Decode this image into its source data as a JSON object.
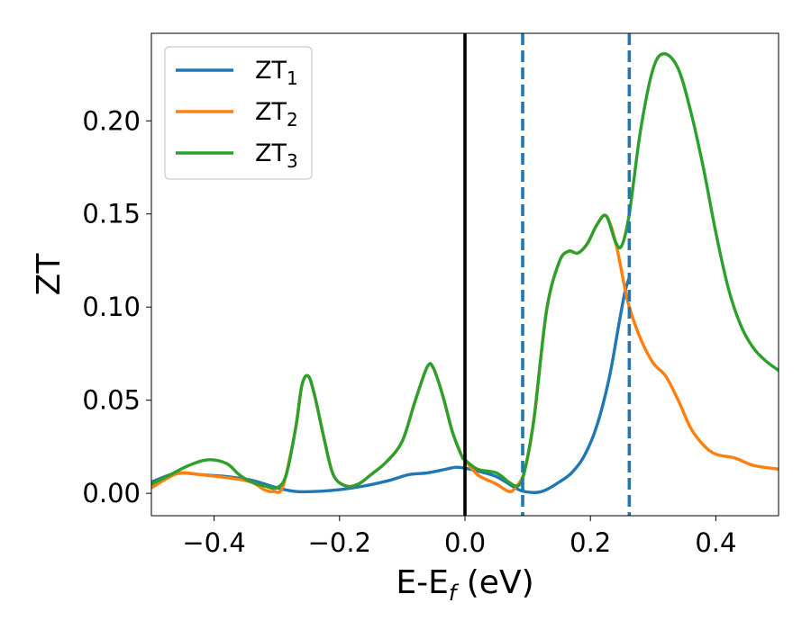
{
  "chart_data": {
    "type": "line",
    "xlabel": {
      "main": "E-E",
      "sub": "f",
      "suffix": " (eV)"
    },
    "ylabel": "ZT",
    "xlim": [
      -0.5,
      0.5
    ],
    "ylim": [
      -0.012,
      0.247
    ],
    "x_ticks": [
      -0.4,
      -0.2,
      0.0,
      0.2,
      0.4
    ],
    "x_tick_labels": [
      "−0.4",
      "−0.2",
      "0.0",
      "0.2",
      "0.4"
    ],
    "y_ticks": [
      0.0,
      0.05,
      0.1,
      0.15,
      0.2
    ],
    "y_tick_labels": [
      "0.00",
      "0.05",
      "0.10",
      "0.15",
      "0.20"
    ],
    "legend_position": "upper-left",
    "vertical_lines": [
      {
        "x": 0.0,
        "color": "#000000",
        "style": "solid"
      },
      {
        "x": 0.092,
        "color": "#1f77b4",
        "style": "dashed"
      },
      {
        "x": 0.262,
        "color": "#1f77b4",
        "style": "dashed"
      }
    ],
    "series": [
      {
        "name": "ZT",
        "sub": "1",
        "color": "#1f77b4",
        "points": [
          [
            -0.5,
            0.006
          ],
          [
            -0.47,
            0.01
          ],
          [
            -0.45,
            0.011
          ],
          [
            -0.42,
            0.01
          ],
          [
            -0.38,
            0.009
          ],
          [
            -0.34,
            0.007
          ],
          [
            -0.3,
            0.003
          ],
          [
            -0.27,
            0.001
          ],
          [
            -0.24,
            0.001
          ],
          [
            -0.2,
            0.002
          ],
          [
            -0.16,
            0.004
          ],
          [
            -0.12,
            0.007
          ],
          [
            -0.09,
            0.01
          ],
          [
            -0.06,
            0.011
          ],
          [
            -0.03,
            0.013
          ],
          [
            -0.015,
            0.014
          ],
          [
            0.0,
            0.0135
          ],
          [
            0.02,
            0.012
          ],
          [
            0.05,
            0.009
          ],
          [
            0.08,
            0.003
          ],
          [
            0.095,
            0.001
          ],
          [
            0.115,
            0.0005
          ],
          [
            0.13,
            0.002
          ],
          [
            0.15,
            0.006
          ],
          [
            0.17,
            0.011
          ],
          [
            0.19,
            0.02
          ],
          [
            0.21,
            0.036
          ],
          [
            0.23,
            0.062
          ],
          [
            0.245,
            0.09
          ],
          [
            0.255,
            0.108
          ],
          [
            0.262,
            0.116
          ]
        ]
      },
      {
        "name": "ZT",
        "sub": "2",
        "color": "#ff7f0e",
        "points": [
          [
            -0.5,
            0.003
          ],
          [
            -0.47,
            0.009
          ],
          [
            -0.45,
            0.011
          ],
          [
            -0.42,
            0.01
          ],
          [
            -0.37,
            0.008
          ],
          [
            -0.34,
            0.006
          ],
          [
            -0.32,
            0.002
          ],
          [
            -0.305,
            0.001
          ],
          [
            -0.29,
            0.004
          ],
          [
            -0.27,
            0.035
          ],
          [
            -0.26,
            0.058
          ],
          [
            -0.25,
            0.063
          ],
          [
            -0.24,
            0.053
          ],
          [
            -0.225,
            0.03
          ],
          [
            -0.21,
            0.01
          ],
          [
            -0.19,
            0.004
          ],
          [
            -0.17,
            0.005
          ],
          [
            -0.15,
            0.01
          ],
          [
            -0.125,
            0.017
          ],
          [
            -0.1,
            0.028
          ],
          [
            -0.08,
            0.049
          ],
          [
            -0.06,
            0.068
          ],
          [
            -0.05,
            0.067
          ],
          [
            -0.035,
            0.052
          ],
          [
            -0.02,
            0.033
          ],
          [
            -0.005,
            0.02
          ],
          [
            0.0,
            0.018
          ],
          [
            0.02,
            0.01
          ],
          [
            0.05,
            0.005
          ],
          [
            0.07,
            0.001
          ],
          [
            0.08,
            0.003
          ],
          [
            0.095,
            0.012
          ],
          [
            0.11,
            0.04
          ],
          [
            0.13,
            0.098
          ],
          [
            0.15,
            0.124
          ],
          [
            0.165,
            0.13
          ],
          [
            0.18,
            0.129
          ],
          [
            0.195,
            0.134
          ],
          [
            0.21,
            0.144
          ],
          [
            0.225,
            0.149
          ],
          [
            0.24,
            0.135
          ],
          [
            0.255,
            0.11
          ],
          [
            0.262,
            0.1
          ],
          [
            0.28,
            0.083
          ],
          [
            0.3,
            0.07
          ],
          [
            0.32,
            0.063
          ],
          [
            0.34,
            0.05
          ],
          [
            0.36,
            0.035
          ],
          [
            0.38,
            0.026
          ],
          [
            0.4,
            0.021
          ],
          [
            0.43,
            0.019
          ],
          [
            0.46,
            0.015
          ],
          [
            0.5,
            0.013
          ]
        ]
      },
      {
        "name": "ZT",
        "sub": "3",
        "color": "#2ca02c",
        "points": [
          [
            -0.5,
            0.005
          ],
          [
            -0.47,
            0.01
          ],
          [
            -0.44,
            0.015
          ],
          [
            -0.41,
            0.018
          ],
          [
            -0.38,
            0.016
          ],
          [
            -0.36,
            0.01
          ],
          [
            -0.34,
            0.006
          ],
          [
            -0.32,
            0.004
          ],
          [
            -0.3,
            0.003
          ],
          [
            -0.285,
            0.01
          ],
          [
            -0.27,
            0.035
          ],
          [
            -0.26,
            0.058
          ],
          [
            -0.25,
            0.063
          ],
          [
            -0.24,
            0.053
          ],
          [
            -0.225,
            0.03
          ],
          [
            -0.21,
            0.01
          ],
          [
            -0.19,
            0.004
          ],
          [
            -0.17,
            0.005
          ],
          [
            -0.15,
            0.01
          ],
          [
            -0.125,
            0.017
          ],
          [
            -0.1,
            0.028
          ],
          [
            -0.08,
            0.049
          ],
          [
            -0.06,
            0.068
          ],
          [
            -0.05,
            0.067
          ],
          [
            -0.035,
            0.052
          ],
          [
            -0.02,
            0.033
          ],
          [
            -0.005,
            0.02
          ],
          [
            0.0,
            0.018
          ],
          [
            0.02,
            0.013
          ],
          [
            0.05,
            0.011
          ],
          [
            0.07,
            0.006
          ],
          [
            0.085,
            0.004
          ],
          [
            0.095,
            0.012
          ],
          [
            0.11,
            0.04
          ],
          [
            0.13,
            0.098
          ],
          [
            0.15,
            0.124
          ],
          [
            0.165,
            0.13
          ],
          [
            0.18,
            0.129
          ],
          [
            0.195,
            0.134
          ],
          [
            0.21,
            0.144
          ],
          [
            0.225,
            0.149
          ],
          [
            0.24,
            0.135
          ],
          [
            0.25,
            0.133
          ],
          [
            0.262,
            0.15
          ],
          [
            0.28,
            0.195
          ],
          [
            0.3,
            0.228
          ],
          [
            0.318,
            0.236
          ],
          [
            0.34,
            0.228
          ],
          [
            0.36,
            0.205
          ],
          [
            0.38,
            0.175
          ],
          [
            0.4,
            0.14
          ],
          [
            0.42,
            0.11
          ],
          [
            0.44,
            0.09
          ],
          [
            0.46,
            0.078
          ],
          [
            0.48,
            0.071
          ],
          [
            0.5,
            0.066
          ]
        ]
      }
    ]
  }
}
